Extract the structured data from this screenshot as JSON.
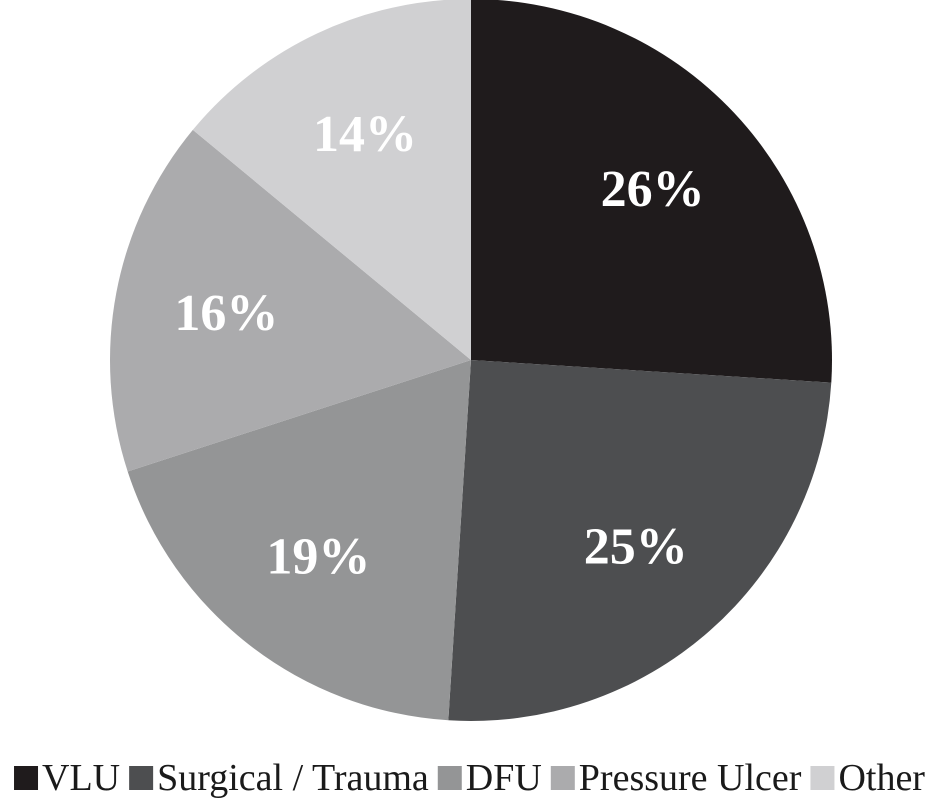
{
  "chart_data": {
    "type": "pie",
    "categories": [
      "VLU",
      "Surgical / Trauma",
      "DFU",
      "Pressure Ulcer",
      "Other"
    ],
    "values": [
      26,
      25,
      19,
      16,
      14
    ],
    "labels": [
      "26%",
      "25%",
      "19%",
      "16%",
      "14%"
    ],
    "colors": [
      "#1f1b1c",
      "#4d4e50",
      "#949596",
      "#ababad",
      "#d0d0d2"
    ],
    "start_angle_deg": 0,
    "direction": "clockwise",
    "legend_position": "bottom"
  }
}
